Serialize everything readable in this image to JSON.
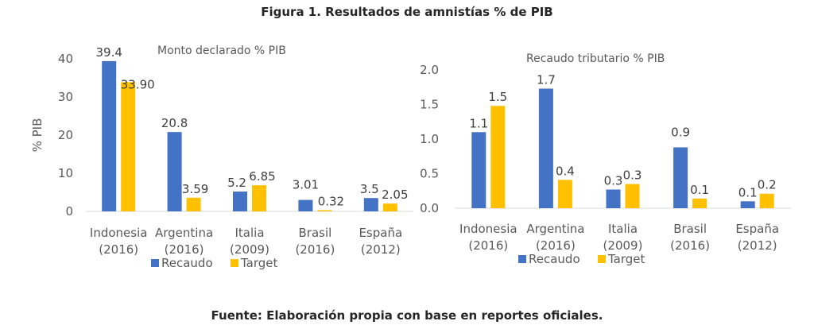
{
  "figure": {
    "title": "Figura 1. Resultados de amnistías % de PIB",
    "footer": "Fuente: Elaboración propia con base en reportes oficiales."
  },
  "colors": {
    "Recaudo": "#4472C4",
    "Target": "#FFC000",
    "axis": "#D9D9D9"
  },
  "chart_data": [
    {
      "type": "bar",
      "title": "Monto declarado % PIB",
      "ylabel": "% PIB",
      "xlabel": "",
      "ylim": [
        0,
        40
      ],
      "yticks": [
        "0",
        "10",
        "20",
        "30",
        "40"
      ],
      "ytick_values": [
        0,
        10,
        20,
        30,
        40
      ],
      "categories": [
        [
          "Indonesia",
          "(2016)"
        ],
        [
          "Argentina",
          "(2016)"
        ],
        [
          "Italia",
          "(2009)"
        ],
        [
          "Brasil",
          "(2016)"
        ],
        [
          "España",
          "(2012)"
        ]
      ],
      "series": [
        {
          "name": "Recaudo",
          "values": [
            39.4,
            20.8,
            5.2,
            3.01,
            3.5
          ],
          "labels": [
            "39.4",
            "20.8",
            "5.2",
            "3.01",
            "3.5"
          ]
        },
        {
          "name": "Target",
          "values": [
            33.9,
            3.59,
            6.85,
            0.32,
            2.05
          ],
          "labels": [
            "33.90",
            "3.59",
            "6.85",
            "0.32",
            "2.05"
          ]
        }
      ],
      "legend": {
        "position": "bottom",
        "entries": [
          "Recaudo",
          "Target"
        ]
      },
      "grid": false
    },
    {
      "type": "bar",
      "title": "Recaudo tributario % PIB",
      "ylabel": "",
      "xlabel": "",
      "ylim": [
        0,
        2.0
      ],
      "yticks": [
        "0.0",
        "0.5",
        "1.0",
        "1.5",
        "2.0"
      ],
      "ytick_values": [
        0,
        0.5,
        1.0,
        1.5,
        2.0
      ],
      "categories": [
        [
          "Indonesia",
          "(2016)"
        ],
        [
          "Argentina",
          "(2016)"
        ],
        [
          "Italia",
          "(2009)"
        ],
        [
          "Brasil",
          "(2016)"
        ],
        [
          "España",
          "(2012)"
        ]
      ],
      "series": [
        {
          "name": "Recaudo",
          "values": [
            1.1,
            1.73,
            0.27,
            0.88,
            0.1
          ],
          "labels": [
            "1.1",
            "1.7",
            "0.3",
            "0.9",
            "0.1"
          ]
        },
        {
          "name": "Target",
          "values": [
            1.48,
            0.41,
            0.35,
            0.14,
            0.21
          ],
          "labels": [
            "1.5",
            "0.4",
            "0.3",
            "0.1",
            "0.2"
          ]
        }
      ],
      "legend": {
        "position": "bottom",
        "entries": [
          "Recaudo",
          "Target"
        ]
      },
      "grid": false
    }
  ]
}
